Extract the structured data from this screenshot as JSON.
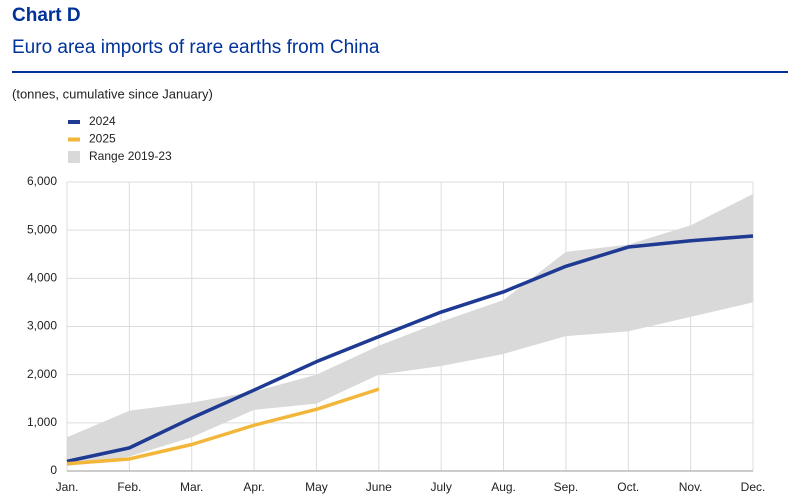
{
  "chart_data": {
    "type": "line",
    "title": "Chart D",
    "subtitle": "Euro area imports of rare earths from China",
    "unit_note": "(tonnes, cumulative since January)",
    "categories": [
      "Jan.",
      "Feb.",
      "Mar.",
      "Apr.",
      "May",
      "June",
      "July",
      "Aug.",
      "Sep.",
      "Oct.",
      "Nov.",
      "Dec."
    ],
    "ylim": [
      0,
      6000
    ],
    "yticks": [
      0,
      {
        "value": 1000,
        "label": "1,000"
      },
      {
        "value": 2000,
        "label": "2,000"
      },
      {
        "value": 3000,
        "label": "3,000"
      },
      {
        "value": 4000,
        "label": "4,000"
      },
      {
        "value": 5000,
        "label": "5,000"
      },
      {
        "value": 6000,
        "label": "6,000"
      }
    ],
    "grid": true,
    "legend": "top-left",
    "series": [
      {
        "name": "2024",
        "color": "#1f3a93",
        "values": [
          200,
          480,
          1100,
          1680,
          2270,
          2790,
          3300,
          3720,
          4250,
          4650,
          4780,
          4880
        ]
      },
      {
        "name": "2025",
        "color": "#f2b73a",
        "values": [
          150,
          250,
          550,
          950,
          1280,
          1700,
          null,
          null,
          null,
          null,
          null,
          null
        ]
      }
    ],
    "band": {
      "name": "Range 2019-23",
      "color": "#d9d9d9",
      "lower": [
        100,
        300,
        700,
        1270,
        1400,
        2000,
        2180,
        2430,
        2800,
        2900,
        3200,
        3500
      ],
      "upper": [
        700,
        1250,
        1420,
        1650,
        2000,
        2600,
        3100,
        3550,
        4550,
        4700,
        5100,
        5750
      ]
    }
  }
}
